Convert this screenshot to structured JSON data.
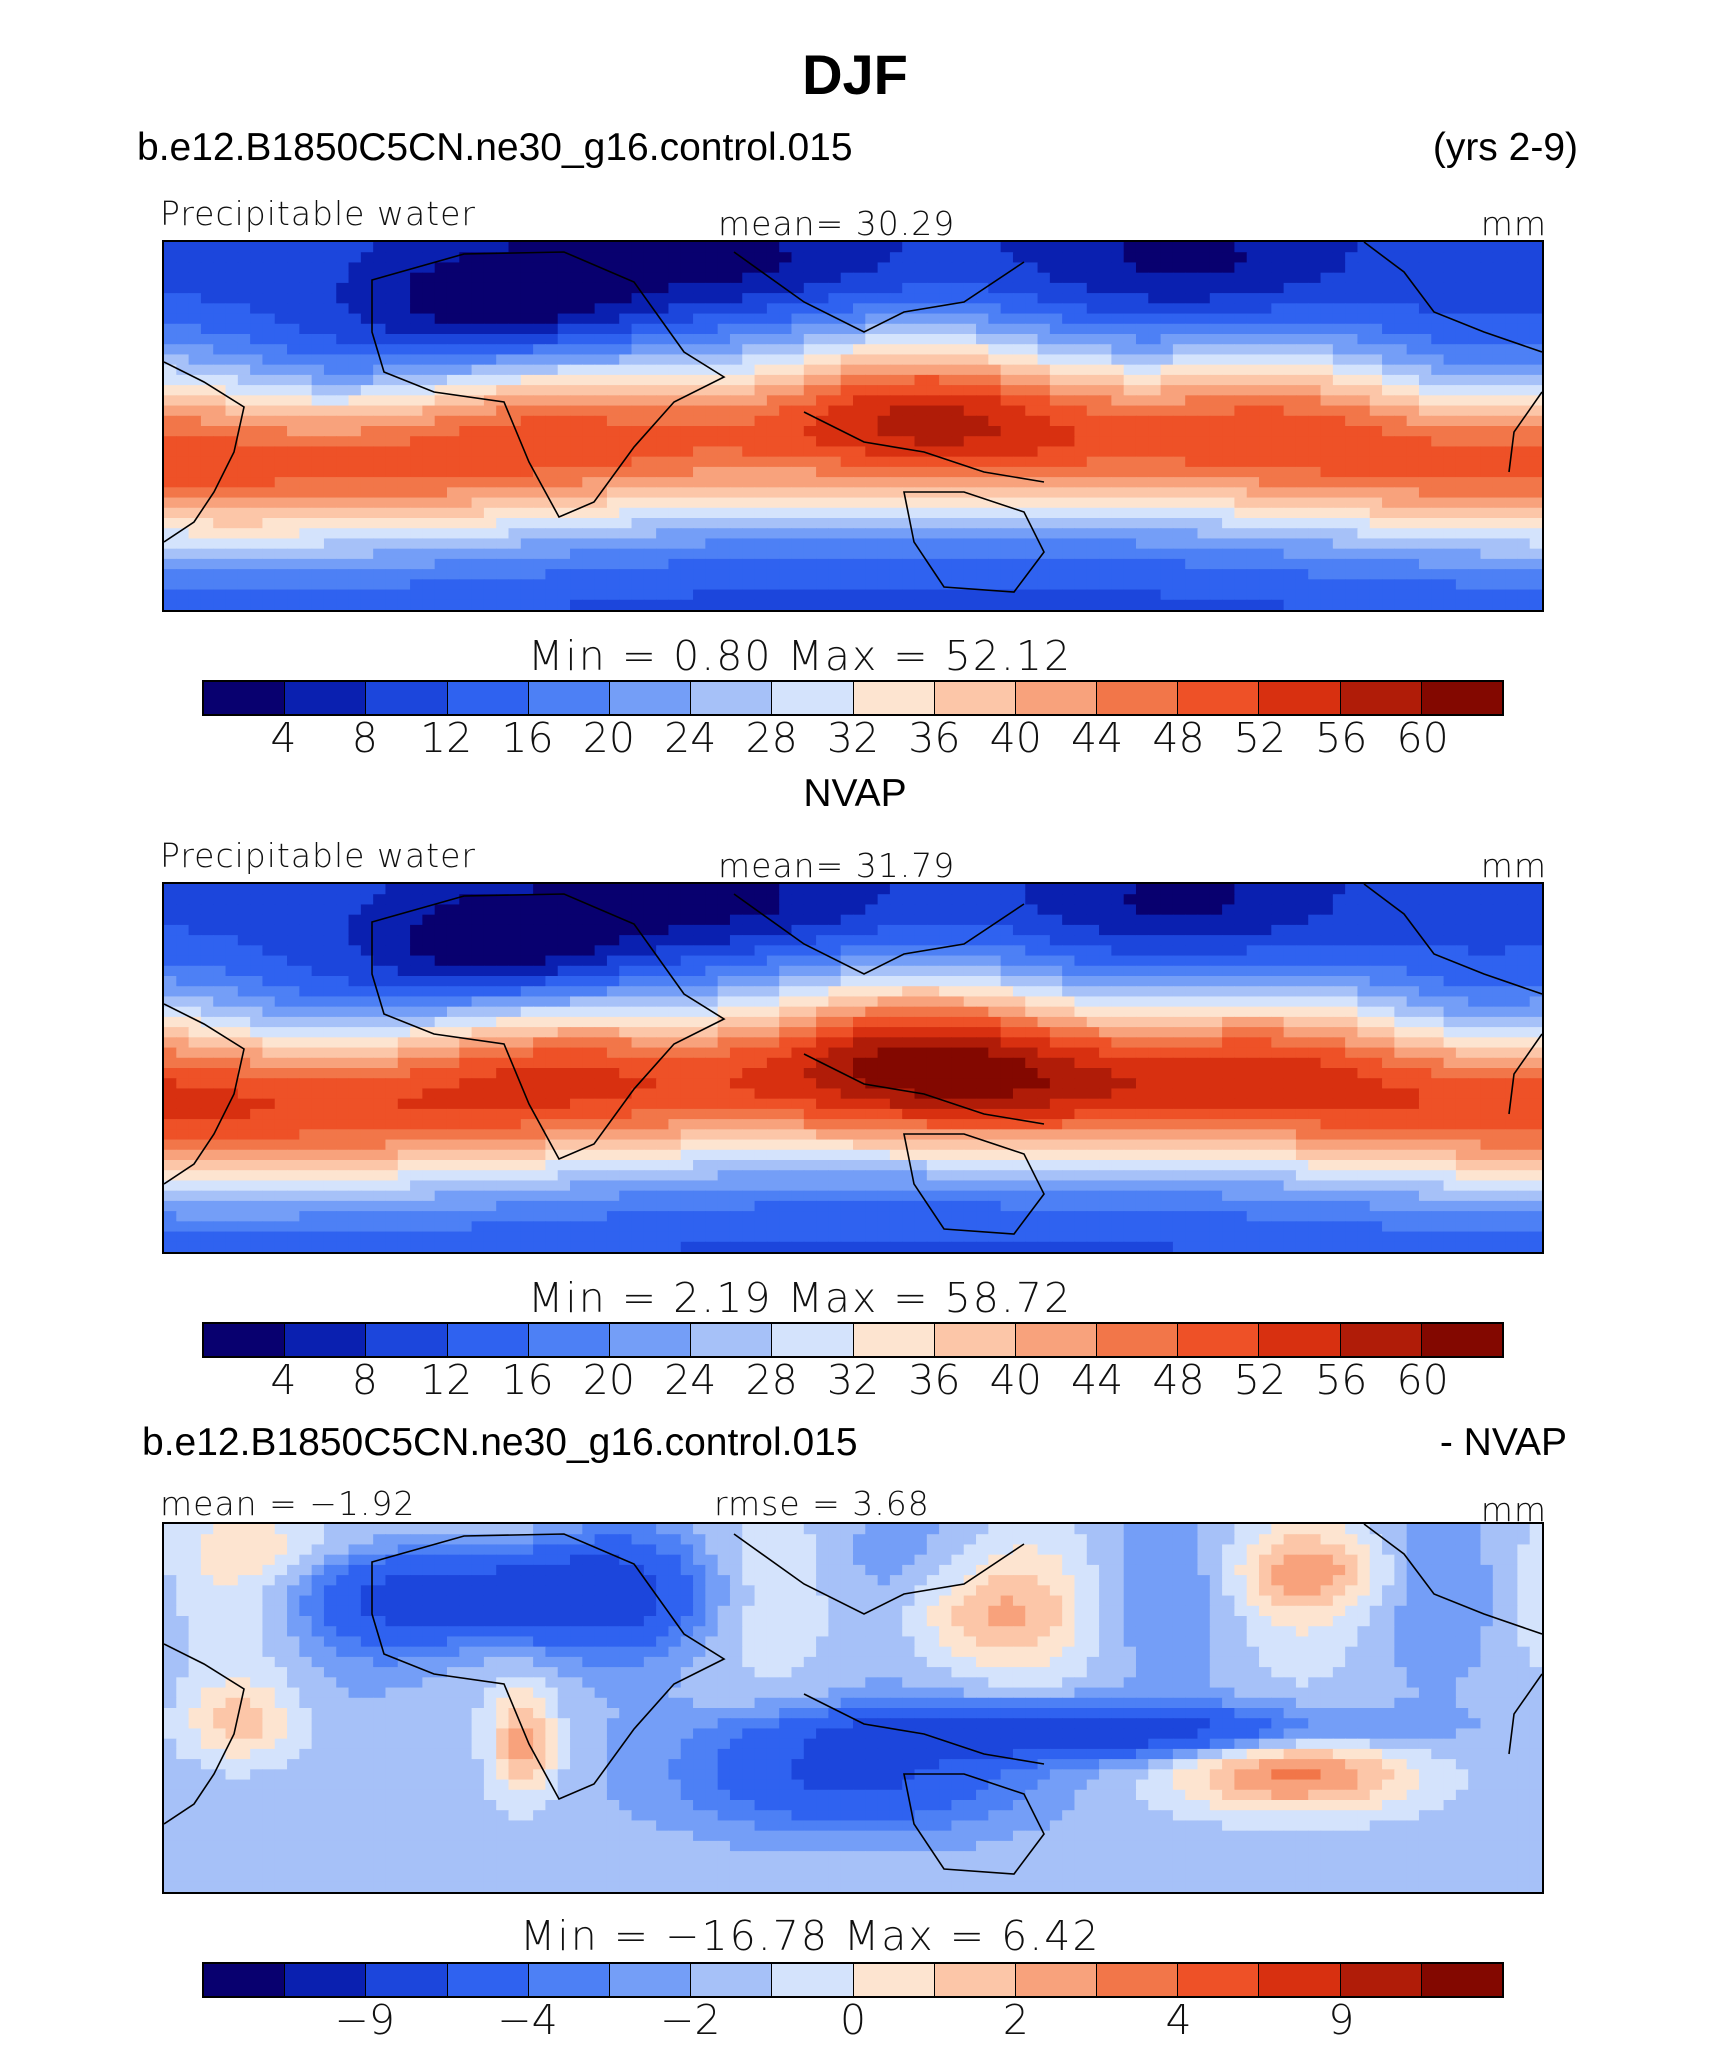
{
  "title": "DJF",
  "colors": [
    "#08006f",
    "#0a20b0",
    "#1c46dc",
    "#2f62f0",
    "#4d80f5",
    "#749ef7",
    "#a6c1f8",
    "#d4e3fc",
    "#fde4d0",
    "#fcc6a8",
    "#f8a27c",
    "#f27649",
    "#ee5127",
    "#d83010",
    "#b01c08",
    "#830800"
  ],
  "panels": [
    {
      "header_left": "b.e12.B1850C5CN.ne30_g16.control.015",
      "header_right": "(yrs 2-9)",
      "label_left": "Precipitable water",
      "label_center": "mean=   30.29",
      "label_right": "mm",
      "minmax": "Min =    0.80 Max =   52.12",
      "ticks": [
        "4",
        "8",
        "12",
        "16",
        "20",
        "24",
        "28",
        "32",
        "36",
        "40",
        "44",
        "48",
        "52",
        "56",
        "60"
      ],
      "field_type": "model"
    },
    {
      "header_center": "NVAP",
      "label_left": "Precipitable water",
      "label_center": "mean=   31.79",
      "label_right": "mm",
      "minmax": "Min =    2.19 Max =   58.72",
      "ticks": [
        "4",
        "8",
        "12",
        "16",
        "20",
        "24",
        "28",
        "32",
        "36",
        "40",
        "44",
        "48",
        "52",
        "56",
        "60"
      ],
      "field_type": "obs"
    },
    {
      "header_left": "b.e12.B1850C5CN.ne30_g16.control.015",
      "header_right": "- NVAP",
      "label_left": "mean =  −1.92",
      "label_center": "rmse =     3.68",
      "label_right": "mm",
      "minmax": "Min = −16.78 Max =    6.42",
      "ticks": [
        "−9",
        "−4",
        "−2",
        "0",
        "2",
        "4",
        "9"
      ],
      "field_type": "diff"
    }
  ]
}
